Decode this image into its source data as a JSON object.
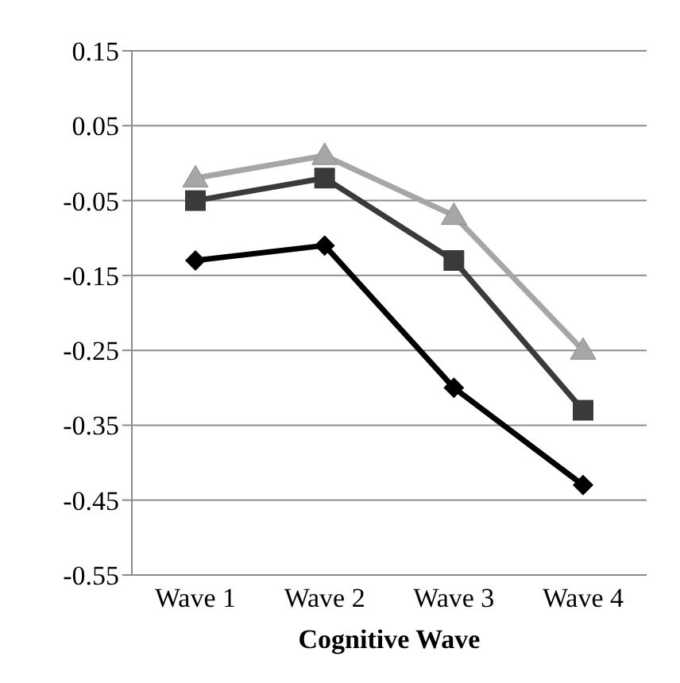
{
  "chart_data": {
    "type": "line",
    "xlabel": "Cognitive Wave",
    "categories": [
      "Wave 1",
      "Wave 2",
      "Wave 3",
      "Wave 4"
    ],
    "series": [
      {
        "color": "#a6a6a6",
        "marker": "triangle",
        "values": [
          -0.02,
          0.01,
          -0.07,
          -0.25
        ]
      },
      {
        "color": "#3a3a3a",
        "marker": "square",
        "values": [
          -0.05,
          -0.02,
          -0.13,
          -0.33
        ]
      },
      {
        "color": "#000000",
        "marker": "diamond",
        "values": [
          -0.13,
          -0.11,
          -0.3,
          -0.43
        ]
      }
    ],
    "ylim": [
      -0.55,
      0.15
    ],
    "yticks": [
      {
        "value": 0.15,
        "label": "0.15"
      },
      {
        "value": 0.05,
        "label": "0.05"
      },
      {
        "value": -0.05,
        "label": "-0.05"
      },
      {
        "value": -0.15,
        "label": "-0.15"
      },
      {
        "value": -0.25,
        "label": "-0.25"
      },
      {
        "value": -0.35,
        "label": "-0.35"
      },
      {
        "value": -0.45,
        "label": "-0.45"
      },
      {
        "value": -0.55,
        "label": "-0.55"
      }
    ],
    "grid": "y",
    "legend": false
  }
}
